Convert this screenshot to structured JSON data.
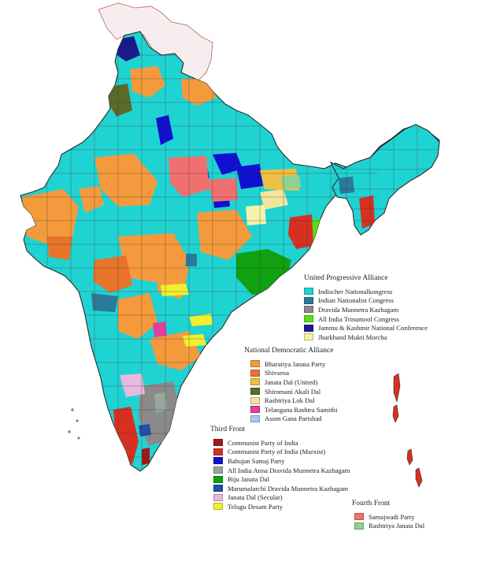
{
  "legend": {
    "groups": [
      {
        "title": "United Progressive Alliance",
        "items": [
          {
            "label": "Indischer Nationalkongress",
            "color": "#20d3d3"
          },
          {
            "label": "Indian Nationalist Congress",
            "color": "#2a7a9a"
          },
          {
            "label": "Dravida Munnetra Kazhagam",
            "color": "#8a8a8a"
          },
          {
            "label": "All India Trinamool Congress",
            "color": "#55e01a"
          },
          {
            "label": "Jammu & Kashmir National Conference",
            "color": "#1a1a8c"
          },
          {
            "label": "Jharkhand Mukti Morcha",
            "color": "#f6f3a8"
          }
        ]
      },
      {
        "title": "National Democratic Alliance",
        "items": [
          {
            "label": "Bharatiya Janata Party",
            "color": "#f59a3c"
          },
          {
            "label": "Shivsena",
            "color": "#e8742a"
          },
          {
            "label": "Janata Dal (United)",
            "color": "#f0c040"
          },
          {
            "label": "Shiromani Akali Dal",
            "color": "#5a6a2a"
          },
          {
            "label": "Rashtriya Lok Dal",
            "color": "#f5e49a"
          },
          {
            "label": "Telangana Rashtra Samithi",
            "color": "#e0409a"
          },
          {
            "label": "Asom Gana Parishad",
            "color": "#a8c8f0"
          }
        ]
      },
      {
        "title": "Third Front",
        "items": [
          {
            "label": "Communist Party of India",
            "color": "#a01818"
          },
          {
            "label": "Communist Party of India (Marxist)",
            "color": "#d83020"
          },
          {
            "label": "Bahujan Samaj Party",
            "color": "#1010d0"
          },
          {
            "label": "All India Anna Dravida Munnetra Kazhagam",
            "color": "#98a8a0"
          },
          {
            "label": "Biju Janata Dal",
            "color": "#10a010"
          },
          {
            "label": "Marumalarchi Dravida Munnetra Kazhagam",
            "color": "#2050a8"
          },
          {
            "label": "Janata Dal (Secular)",
            "color": "#e8b8e0"
          },
          {
            "label": "Telugu Desam Party",
            "color": "#f0f030"
          }
        ]
      },
      {
        "title": "Fourth Front",
        "items": [
          {
            "label": "Samajwadi Party",
            "color": "#f07070"
          },
          {
            "label": "Rashtriya Janata Dal",
            "color": "#90d090"
          }
        ]
      }
    ]
  },
  "map": {
    "outline_color": "#2a2a2a",
    "disputed_fill": "#f6eeee",
    "disputed_outline": "#c07070"
  }
}
